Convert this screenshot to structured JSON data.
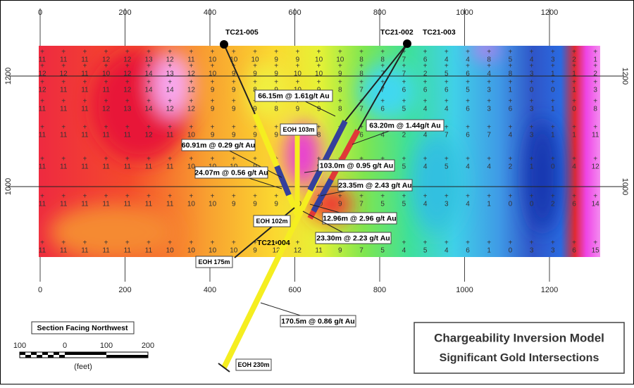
{
  "axes": {
    "x_top": [
      "0",
      "200",
      "400",
      "600",
      "800",
      "1000",
      "1200"
    ],
    "x_bottom": [
      "0",
      "200",
      "400",
      "600",
      "800",
      "1000",
      "1200"
    ],
    "y_left": [
      "1200",
      "1000"
    ],
    "y_right": [
      "1200",
      "1000"
    ]
  },
  "grid_values": {
    "rows": [
      [
        11,
        11,
        11,
        12,
        12,
        13,
        12,
        11,
        10,
        10,
        10,
        9,
        9,
        10,
        10,
        8,
        8,
        7,
        6,
        4,
        4,
        8,
        5,
        4,
        3,
        2,
        1
      ],
      [
        12,
        12,
        11,
        10,
        12,
        14,
        13,
        12,
        10,
        9,
        9,
        9,
        10,
        10,
        9,
        8,
        7,
        7,
        2,
        5,
        6,
        4,
        8,
        3,
        1,
        1,
        2
      ],
      [
        12,
        11,
        11,
        11,
        12,
        14,
        14,
        12,
        9,
        9,
        8,
        9,
        10,
        9,
        8,
        7,
        7,
        6,
        6,
        6,
        5,
        3,
        1,
        0,
        0,
        1,
        3
      ],
      [
        11,
        11,
        11,
        12,
        13,
        14,
        12,
        12,
        9,
        9,
        9,
        8,
        9,
        9,
        8,
        7,
        6,
        5,
        4,
        4,
        6,
        3,
        6,
        3,
        1,
        0,
        8
      ],
      [
        11,
        11,
        11,
        11,
        11,
        12,
        11,
        10,
        9,
        9,
        9,
        9,
        8,
        8,
        7,
        6,
        4,
        2,
        4,
        7,
        6,
        7,
        4,
        3,
        1,
        1,
        11
      ],
      [
        11,
        11,
        11,
        11,
        11,
        11,
        11,
        10,
        10,
        10,
        9,
        8,
        9,
        9,
        8,
        7,
        4,
        5,
        4,
        5,
        4,
        4,
        2,
        1,
        0,
        4,
        12
      ],
      [
        11,
        11,
        11,
        11,
        11,
        11,
        11,
        10,
        10,
        9,
        9,
        9,
        10,
        10,
        9,
        7,
        5,
        5,
        4,
        3,
        4,
        1,
        0,
        0,
        2,
        6,
        14
      ],
      [
        11,
        11,
        11,
        11,
        11,
        11,
        10,
        10,
        10,
        10,
        9,
        12,
        12,
        11,
        9,
        7,
        5,
        4,
        5,
        4,
        6,
        1,
        0,
        3,
        3,
        6,
        15
      ]
    ]
  },
  "drillholes": [
    "TC21-005",
    "TC21-002",
    "TC21-003",
    "TC21-004"
  ],
  "intercepts": [
    "66.15m @ 1.61g/t Au",
    "63.20m @ 1.44g/t Au",
    "60.91m @ 0.29 g/t Au",
    "24.07m @ 0.56 g/t Au",
    "103.0m @ 0.95 g/t Au",
    "23.35m @ 2.43 g/t Au",
    "12.96m @ 2.96 g/t Au",
    "23.30m @ 2.23 g/t Au",
    "170.5m @ 0.86 g/t Au"
  ],
  "eoh": [
    "EOH 103m",
    "EOH 102m",
    "EOH 175m",
    "EOH 230m"
  ],
  "orientation": "Section Facing Northwest",
  "scale_bar": {
    "labels": [
      "100",
      "0",
      "100",
      "200"
    ],
    "unit": "(feet)"
  },
  "title_box": {
    "title": "Chargeability Inversion Model",
    "subtitle": "Significant Gold Intersections"
  }
}
